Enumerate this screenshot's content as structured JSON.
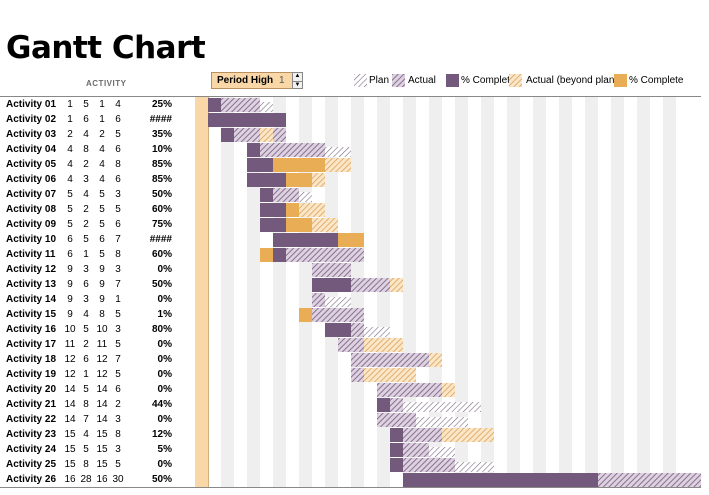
{
  "title": "Gantt Chart",
  "activity_header": "ACTIVITY",
  "period_highlight": {
    "label": "Period High",
    "value": "1"
  },
  "legend": [
    {
      "label": "Plan",
      "icon": "plan-hatch-icon"
    },
    {
      "label": "Actual",
      "icon": "actual-hatch-icon"
    },
    {
      "label": "% Complete",
      "icon": "complete-solid-icon"
    },
    {
      "label": "Actual (beyond plan)",
      "icon": "beyond-plan-hatch-icon"
    },
    {
      "label": "% Complete",
      "icon": "beyond-complete-solid-icon"
    }
  ],
  "colors": {
    "plan": "#7a6a80",
    "actual": "#8a6f91",
    "complete": "#735a7c",
    "beyond_actual": "#d9a15a",
    "beyond_complete": "#e8ad55",
    "highlight": "#f9d7a6",
    "stripe": "#efefef"
  },
  "chart_data": {
    "type": "gantt",
    "columns": [
      "activity",
      "plan_start",
      "plan_duration",
      "actual_start",
      "actual_duration",
      "percent_complete"
    ],
    "rows": [
      {
        "name": "Activity 01",
        "ps": 1,
        "pd": 5,
        "as": 1,
        "ad": 4,
        "pct": "25%"
      },
      {
        "name": "Activity 02",
        "ps": 1,
        "pd": 6,
        "as": 1,
        "ad": 6,
        "pct": "####"
      },
      {
        "name": "Activity 03",
        "ps": 2,
        "pd": 4,
        "as": 2,
        "ad": 5,
        "pct": "35%"
      },
      {
        "name": "Activity 04",
        "ps": 4,
        "pd": 8,
        "as": 4,
        "ad": 6,
        "pct": "10%"
      },
      {
        "name": "Activity 05",
        "ps": 4,
        "pd": 2,
        "as": 4,
        "ad": 8,
        "pct": "85%"
      },
      {
        "name": "Activity 06",
        "ps": 4,
        "pd": 3,
        "as": 4,
        "ad": 6,
        "pct": "85%"
      },
      {
        "name": "Activity 07",
        "ps": 5,
        "pd": 4,
        "as": 5,
        "ad": 3,
        "pct": "50%"
      },
      {
        "name": "Activity 08",
        "ps": 5,
        "pd": 2,
        "as": 5,
        "ad": 5,
        "pct": "60%"
      },
      {
        "name": "Activity 09",
        "ps": 5,
        "pd": 2,
        "as": 5,
        "ad": 6,
        "pct": "75%"
      },
      {
        "name": "Activity 10",
        "ps": 6,
        "pd": 5,
        "as": 6,
        "ad": 7,
        "pct": "####"
      },
      {
        "name": "Activity 11",
        "ps": 6,
        "pd": 1,
        "as": 5,
        "ad": 8,
        "pct": "60%"
      },
      {
        "name": "Activity 12",
        "ps": 9,
        "pd": 3,
        "as": 9,
        "ad": 3,
        "pct": "0%"
      },
      {
        "name": "Activity 13",
        "ps": 9,
        "pd": 6,
        "as": 9,
        "ad": 7,
        "pct": "50%"
      },
      {
        "name": "Activity 14",
        "ps": 9,
        "pd": 3,
        "as": 9,
        "ad": 1,
        "pct": "0%"
      },
      {
        "name": "Activity 15",
        "ps": 9,
        "pd": 4,
        "as": 8,
        "ad": 5,
        "pct": "1%"
      },
      {
        "name": "Activity 16",
        "ps": 10,
        "pd": 5,
        "as": 10,
        "ad": 3,
        "pct": "80%"
      },
      {
        "name": "Activity 17",
        "ps": 11,
        "pd": 2,
        "as": 11,
        "ad": 5,
        "pct": "0%"
      },
      {
        "name": "Activity 18",
        "ps": 12,
        "pd": 6,
        "as": 12,
        "ad": 7,
        "pct": "0%"
      },
      {
        "name": "Activity 19",
        "ps": 12,
        "pd": 1,
        "as": 12,
        "ad": 5,
        "pct": "0%"
      },
      {
        "name": "Activity 20",
        "ps": 14,
        "pd": 5,
        "as": 14,
        "ad": 6,
        "pct": "0%"
      },
      {
        "name": "Activity 21",
        "ps": 14,
        "pd": 8,
        "as": 14,
        "ad": 2,
        "pct": "44%"
      },
      {
        "name": "Activity 22",
        "ps": 14,
        "pd": 7,
        "as": 14,
        "ad": 3,
        "pct": "0%"
      },
      {
        "name": "Activity 23",
        "ps": 15,
        "pd": 4,
        "as": 15,
        "ad": 8,
        "pct": "12%"
      },
      {
        "name": "Activity 24",
        "ps": 15,
        "pd": 5,
        "as": 15,
        "ad": 3,
        "pct": "5%"
      },
      {
        "name": "Activity 25",
        "ps": 15,
        "pd": 8,
        "as": 15,
        "ad": 5,
        "pct": "0%"
      },
      {
        "name": "Activity 26",
        "ps": 16,
        "pd": 28,
        "as": 16,
        "ad": 30,
        "pct": "50%"
      }
    ],
    "bars": [
      {
        "plan": [
          1,
          5
        ],
        "actual": [
          1,
          4
        ],
        "complete": [
          1,
          1
        ],
        "beyond": null,
        "beyond_complete": null
      },
      {
        "plan": [
          1,
          6
        ],
        "actual": [
          1,
          6
        ],
        "complete": [
          1,
          6
        ],
        "beyond": null,
        "beyond_complete": null
      },
      {
        "plan": [
          2,
          4
        ],
        "actual": [
          2,
          5
        ],
        "complete": [
          2,
          1
        ],
        "beyond": [
          5,
          1
        ],
        "beyond_complete": null
      },
      {
        "plan": [
          4,
          8
        ],
        "actual": [
          4,
          6
        ],
        "complete": [
          4,
          1
        ],
        "beyond": null,
        "beyond_complete": null
      },
      {
        "plan": [
          4,
          2
        ],
        "actual": [
          4,
          8
        ],
        "complete": [
          4,
          2
        ],
        "beyond": [
          6,
          6
        ],
        "beyond_complete": [
          6,
          4
        ]
      },
      {
        "plan": [
          4,
          3
        ],
        "actual": [
          4,
          6
        ],
        "complete": [
          4,
          3
        ],
        "beyond": [
          7,
          3
        ],
        "beyond_complete": [
          7,
          2
        ]
      },
      {
        "plan": [
          5,
          4
        ],
        "actual": [
          5,
          3
        ],
        "complete": [
          5,
          1
        ],
        "beyond": null,
        "beyond_complete": null
      },
      {
        "plan": [
          5,
          2
        ],
        "actual": [
          5,
          5
        ],
        "complete": [
          5,
          2
        ],
        "beyond": [
          7,
          3
        ],
        "beyond_complete": [
          7,
          1
        ]
      },
      {
        "plan": [
          5,
          2
        ],
        "actual": [
          5,
          6
        ],
        "complete": [
          5,
          2
        ],
        "beyond": [
          7,
          4
        ],
        "beyond_complete": [
          7,
          2
        ]
      },
      {
        "plan": [
          6,
          5
        ],
        "actual": [
          6,
          7
        ],
        "complete": [
          6,
          5
        ],
        "beyond": [
          11,
          2
        ],
        "beyond_complete": [
          11,
          2
        ]
      },
      {
        "plan": [
          6,
          1
        ],
        "actual": [
          5,
          8
        ],
        "complete": [
          6,
          1
        ],
        "beyond": [
          5,
          1
        ],
        "beyond_complete": [
          5,
          1
        ]
      },
      {
        "plan": [
          9,
          3
        ],
        "actual": [
          9,
          3
        ],
        "complete": null,
        "beyond": null,
        "beyond_complete": null
      },
      {
        "plan": [
          9,
          6
        ],
        "actual": [
          9,
          7
        ],
        "complete": [
          9,
          3
        ],
        "beyond": [
          15,
          1
        ],
        "beyond_complete": null
      },
      {
        "plan": [
          9,
          3
        ],
        "actual": [
          9,
          1
        ],
        "complete": null,
        "beyond": null,
        "beyond_complete": null
      },
      {
        "plan": [
          9,
          4
        ],
        "actual": [
          8,
          5
        ],
        "complete": null,
        "beyond": [
          8,
          1
        ],
        "beyond_complete": [
          8,
          1
        ]
      },
      {
        "plan": [
          10,
          5
        ],
        "actual": [
          10,
          3
        ],
        "complete": [
          10,
          2
        ],
        "beyond": null,
        "beyond_complete": null
      },
      {
        "plan": [
          11,
          2
        ],
        "actual": [
          11,
          5
        ],
        "complete": null,
        "beyond": [
          13,
          3
        ],
        "beyond_complete": null
      },
      {
        "plan": [
          12,
          6
        ],
        "actual": [
          12,
          7
        ],
        "complete": null,
        "beyond": [
          18,
          1
        ],
        "beyond_complete": null
      },
      {
        "plan": [
          12,
          1
        ],
        "actual": [
          12,
          5
        ],
        "complete": null,
        "beyond": [
          13,
          4
        ],
        "beyond_complete": null
      },
      {
        "plan": [
          14,
          5
        ],
        "actual": [
          14,
          6
        ],
        "complete": null,
        "beyond": [
          19,
          1
        ],
        "beyond_complete": null
      },
      {
        "plan": [
          14,
          8
        ],
        "actual": [
          14,
          2
        ],
        "complete": [
          14,
          1
        ],
        "beyond": null,
        "beyond_complete": null
      },
      {
        "plan": [
          14,
          7
        ],
        "actual": [
          14,
          3
        ],
        "complete": null,
        "beyond": null,
        "beyond_complete": null
      },
      {
        "plan": [
          15,
          4
        ],
        "actual": [
          15,
          8
        ],
        "complete": [
          15,
          1
        ],
        "beyond": [
          19,
          4
        ],
        "beyond_complete": null
      },
      {
        "plan": [
          15,
          5
        ],
        "actual": [
          15,
          3
        ],
        "complete": [
          15,
          1
        ],
        "beyond": null,
        "beyond_complete": null
      },
      {
        "plan": [
          15,
          8
        ],
        "actual": [
          15,
          5
        ],
        "complete": [
          15,
          1
        ],
        "beyond": null,
        "beyond_complete": null
      },
      {
        "plan": [
          16,
          28
        ],
        "actual": [
          16,
          30
        ],
        "complete": [
          16,
          15
        ],
        "beyond": null,
        "beyond_complete": null
      }
    ],
    "periods_shown": 39,
    "highlighted_period": 1
  }
}
